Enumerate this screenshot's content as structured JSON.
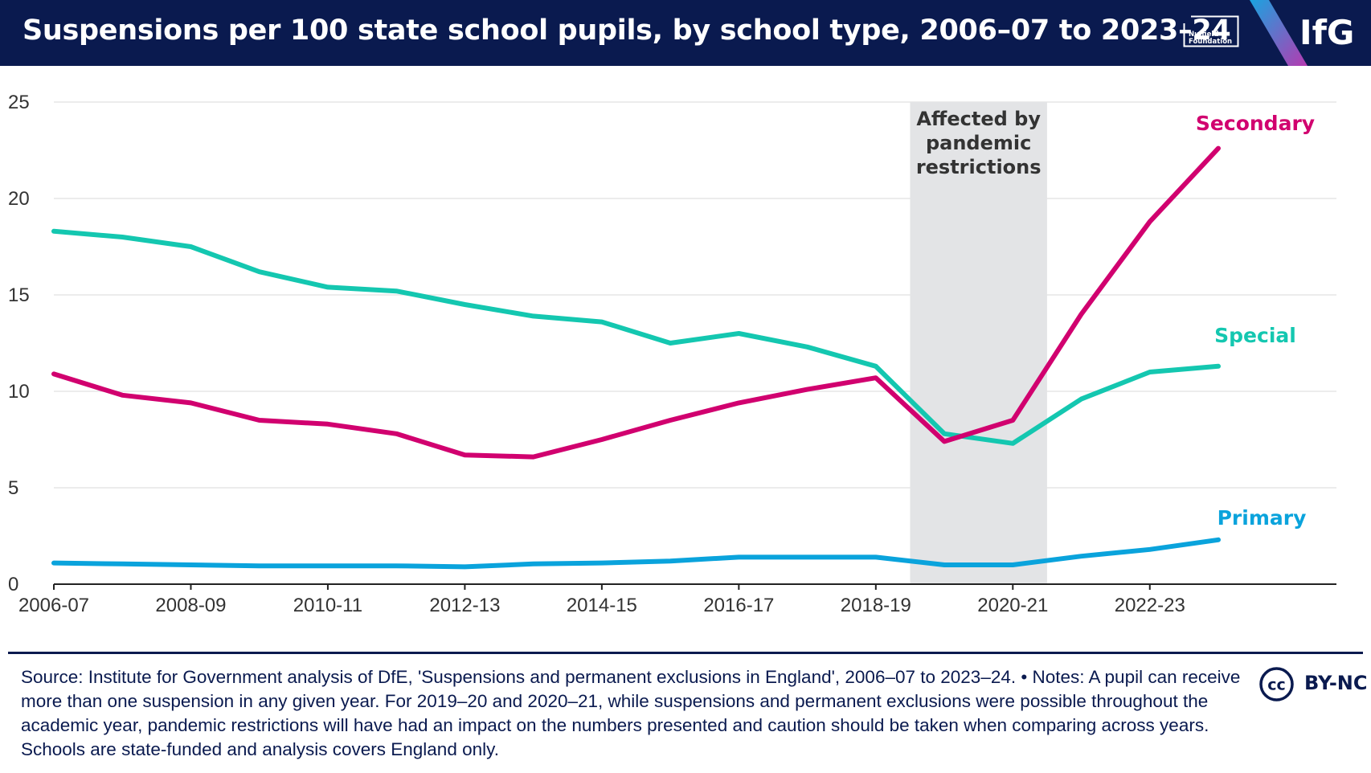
{
  "header": {
    "title": "Suspensions per 100 state school pupils, by school type, 2006–07 to 2023–24",
    "partner_logo_line1": "Nuffield",
    "partner_logo_line2": "Foundation",
    "brand": "IfG"
  },
  "chart_data": {
    "type": "line",
    "title": "Suspensions per 100 state school pupils, by school type, 2006–07 to 2023–24",
    "xlabel": "",
    "ylabel": "",
    "ylim": [
      0,
      25
    ],
    "yticks": [
      "0",
      "5",
      "10",
      "15",
      "20",
      "25"
    ],
    "x": [
      "2006-07",
      "2007-08",
      "2008-09",
      "2009-10",
      "2010-11",
      "2011-12",
      "2012-13",
      "2013-14",
      "2014-15",
      "2015-16",
      "2016-17",
      "2017-18",
      "2018-19",
      "2019-20",
      "2020-21",
      "2021-22",
      "2022-23",
      "2023-24"
    ],
    "xtick_labels": [
      "2006-07",
      "2008-09",
      "2010-11",
      "2012-13",
      "2014-15",
      "2016-17",
      "2018-19",
      "2020-21",
      "2022-23"
    ],
    "grid": true,
    "shaded_region": {
      "from": "2019-20",
      "to": "2020-21",
      "label_lines": [
        "Affected by",
        "pandemic",
        "restrictions"
      ],
      "color": "#e3e4e6"
    },
    "series": [
      {
        "name": "Secondary",
        "color": "#d1006f",
        "values": [
          10.9,
          9.8,
          9.4,
          8.5,
          8.3,
          7.8,
          6.7,
          6.6,
          7.5,
          8.5,
          9.4,
          10.1,
          10.7,
          7.4,
          8.5,
          14.0,
          18.8,
          22.6
        ]
      },
      {
        "name": "Special",
        "color": "#14c7b0",
        "values": [
          18.3,
          18.0,
          17.5,
          16.2,
          15.4,
          15.2,
          14.5,
          13.9,
          13.6,
          12.5,
          13.0,
          12.3,
          11.3,
          7.8,
          7.3,
          9.6,
          11.0,
          11.3
        ]
      },
      {
        "name": "Primary",
        "color": "#0aa3dc",
        "values": [
          1.1,
          1.05,
          1.0,
          0.95,
          0.95,
          0.95,
          0.9,
          1.05,
          1.1,
          1.2,
          1.4,
          1.4,
          1.4,
          1.0,
          1.0,
          1.45,
          1.8,
          2.3
        ]
      }
    ]
  },
  "footer": {
    "source": "Source: Institute for Government analysis of DfE, 'Suspensions and permanent exclusions in England', 2006–07 to 2023–24. • Notes: A pupil can receive more than one suspension in any given year. For 2019–20 and 2020–21, while suspensions and permanent exclusions were possible throughout the academic year, pandemic restrictions will have had an impact on the numbers presented and caution should be taken when comparing across years. Schools are state-funded and analysis covers England only.",
    "cc_text": "cc",
    "license": "BY-NC"
  },
  "colors": {
    "navy": "#0a1a4f",
    "grid": "#e6e6e6",
    "axis": "#222222",
    "tick_text": "#333333"
  }
}
